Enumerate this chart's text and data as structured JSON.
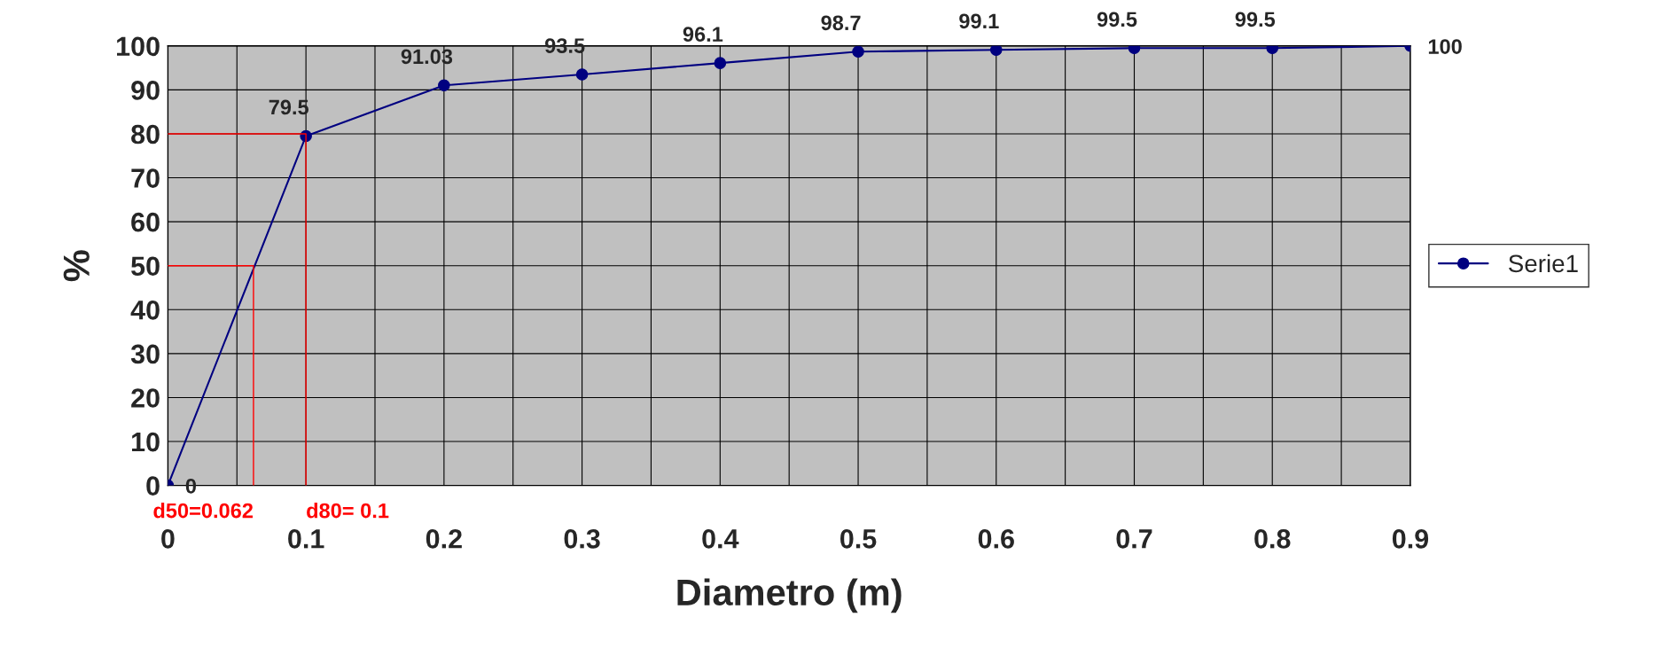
{
  "chart_data": {
    "type": "line",
    "xlabel": "Diametro (m)",
    "ylabel": "%",
    "x": [
      0,
      0.1,
      0.2,
      0.3,
      0.4,
      0.5,
      0.6,
      0.7,
      0.8,
      0.9
    ],
    "series": [
      {
        "name": "Serie1",
        "color": "#000080",
        "values": [
          0,
          79.5,
          91.03,
          93.5,
          96.1,
          98.7,
          99.1,
          99.5,
          99.5,
          100
        ],
        "value_labels": [
          "0",
          "79.5",
          "91.03",
          "93.5",
          "96.1",
          "98.7",
          "99.1",
          "99.5",
          "99.5",
          "100"
        ]
      },
      {
        "color": "#ff0000",
        "marker": "none",
        "x": [
          0,
          0.062,
          0.062
        ],
        "values": [
          50,
          50,
          0
        ]
      },
      {
        "color": "#ff0000",
        "marker": "none",
        "x": [
          0,
          0.1,
          0.1
        ],
        "values": [
          80,
          80,
          0
        ]
      }
    ],
    "marker": "circle",
    "line_style": "solid",
    "legend": "right",
    "grid": true,
    "xlim": [
      0,
      0.9
    ],
    "ylim": [
      0,
      100
    ],
    "xticks": [
      0,
      {
        "value": 0.05,
        "label": null
      },
      0.1,
      {
        "value": 0.15,
        "label": null
      },
      0.2,
      {
        "value": 0.25,
        "label": null
      },
      0.3,
      {
        "value": 0.35,
        "label": null
      },
      0.4,
      {
        "value": 0.45,
        "label": null
      },
      0.5,
      {
        "value": 0.55,
        "label": null
      },
      0.6,
      {
        "value": 0.65,
        "label": null
      },
      0.7,
      {
        "value": 0.75,
        "label": null
      },
      0.8,
      {
        "value": 0.85,
        "label": null
      },
      0.9
    ],
    "yticks": [
      0,
      10,
      20,
      30,
      40,
      50,
      60,
      70,
      80,
      90,
      100
    ],
    "annotations": [
      {
        "text": "d50=0.062",
        "x": 0.062,
        "y": 0
      },
      {
        "text": "d80= 0.1",
        "x": 0.1,
        "y": 0
      }
    ]
  }
}
